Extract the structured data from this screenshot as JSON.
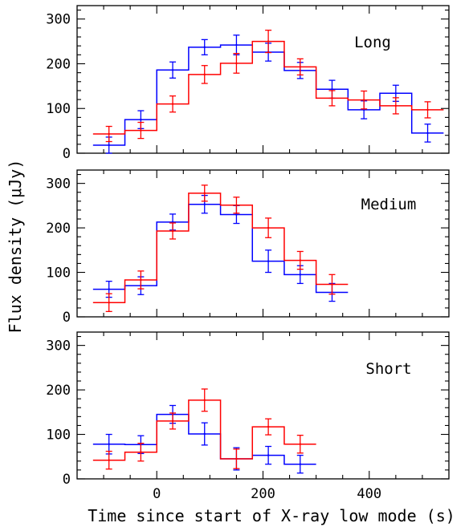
{
  "chart_data": {
    "type": "line",
    "xlabel": "Time since start of X-ray low mode (s)",
    "ylabel": "Flux density (μJy)",
    "xlim": [
      -150,
      550
    ],
    "ylim": [
      0,
      330
    ],
    "xticks_labeled": [
      0,
      200,
      400
    ],
    "yticks_labeled": [
      0,
      100,
      200,
      300
    ],
    "colors": {
      "blue": "#0000ff",
      "red": "#ff0000",
      "axes": "#000000"
    },
    "panels": [
      {
        "label": "Long",
        "series": [
          {
            "color": "blue",
            "edges": [
              -120,
              -60,
              0,
              60,
              120,
              180,
              240,
              300,
              360,
              420,
              480,
              540
            ],
            "x": [
              -90,
              -30,
              30,
              90,
              150,
              210,
              270,
              330,
              390,
              450,
              510
            ],
            "y": [
              18,
              75,
              186,
              237,
              242,
              226,
              185,
              143,
              97,
              134,
              45
            ],
            "err": [
              18,
              20,
              18,
              17,
              22,
              20,
              18,
              20,
              20,
              18,
              20
            ]
          },
          {
            "color": "red",
            "edges": [
              -120,
              -60,
              0,
              60,
              120,
              180,
              240,
              300,
              360,
              420,
              480,
              540
            ],
            "x": [
              -90,
              -30,
              30,
              90,
              150,
              210,
              270,
              330,
              390,
              450,
              510
            ],
            "y": [
              43,
              51,
              110,
              176,
              201,
              250,
              193,
              123,
              119,
              106,
              97
            ],
            "err": [
              17,
              18,
              18,
              20,
              22,
              25,
              18,
              17,
              20,
              18,
              18
            ]
          }
        ]
      },
      {
        "label": "Medium",
        "series": [
          {
            "color": "blue",
            "edges": [
              -120,
              -60,
              0,
              60,
              120,
              180,
              240,
              300,
              360
            ],
            "x": [
              -90,
              -30,
              30,
              90,
              150,
              210,
              270,
              330
            ],
            "y": [
              62,
              70,
              213,
              253,
              230,
              125,
              95,
              55
            ],
            "err": [
              18,
              20,
              18,
              20,
              20,
              25,
              20,
              20
            ]
          },
          {
            "color": "red",
            "edges": [
              -120,
              -60,
              0,
              60,
              120,
              180,
              240,
              300,
              360
            ],
            "x": [
              -90,
              -30,
              30,
              90,
              150,
              210,
              270,
              330
            ],
            "y": [
              32,
              83,
              193,
              278,
              251,
              200,
              127,
              73
            ],
            "err": [
              20,
              20,
              18,
              18,
              18,
              22,
              20,
              22
            ]
          }
        ]
      },
      {
        "label": "Short",
        "series": [
          {
            "color": "blue",
            "edges": [
              -120,
              -60,
              0,
              60,
              120,
              180,
              240,
              300
            ],
            "x": [
              -90,
              -30,
              30,
              90,
              150,
              210,
              270
            ],
            "y": [
              78,
              77,
              145,
              101,
              45,
              53,
              33
            ],
            "err": [
              22,
              20,
              20,
              25,
              25,
              20,
              20
            ]
          },
          {
            "color": "red",
            "edges": [
              -120,
              -60,
              0,
              60,
              120,
              180,
              240,
              300
            ],
            "x": [
              -90,
              -30,
              30,
              90,
              150,
              210,
              270
            ],
            "y": [
              42,
              60,
              130,
              177,
              45,
              117,
              78
            ],
            "err": [
              20,
              20,
              18,
              25,
              22,
              18,
              20
            ]
          }
        ]
      }
    ]
  }
}
